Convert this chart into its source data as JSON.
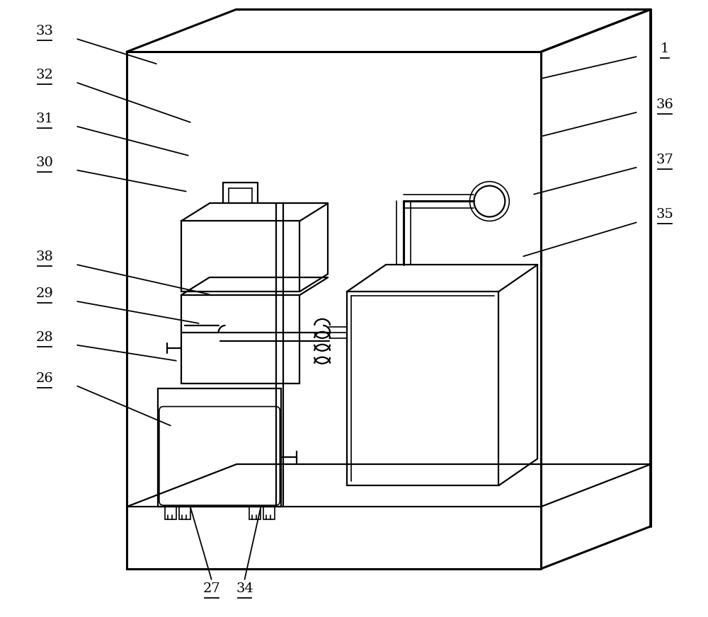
{
  "fig_width": 10.0,
  "fig_height": 8.72,
  "dpi": 100,
  "bg_color": "#ffffff",
  "line_color": "#000000",
  "lw_thick": 2.2,
  "lw_med": 1.6,
  "lw_thin": 1.2
}
